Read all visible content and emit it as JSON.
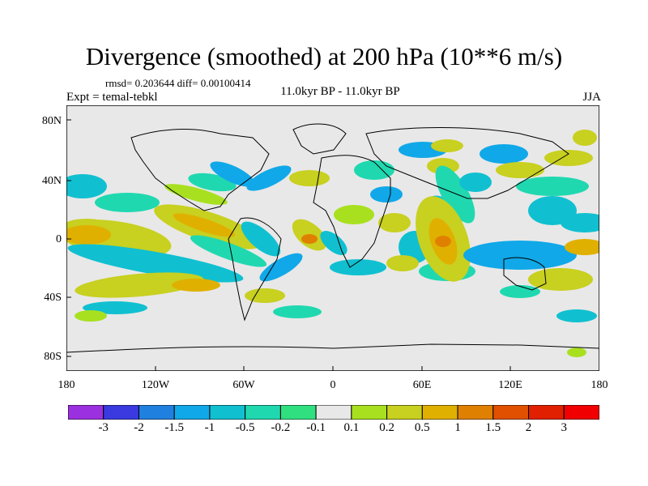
{
  "title": "Divergence (smoothed) at 200 hPa (10**6 m/s)",
  "stats": "rmsd= 0.203644  diff= 0.00100414",
  "experiment": "Expt = temal-tebkl",
  "period": "11.0kyr BP - 11.0kyr BP",
  "season": "JJA",
  "lat_labels": [
    "80N",
    "40N",
    "0",
    "40S",
    "80S"
  ],
  "lon_labels": [
    "180",
    "120W",
    "60W",
    "0",
    "60E",
    "120E",
    "180"
  ],
  "colorbar": {
    "labels": [
      "-3",
      "-2",
      "-1.5",
      "-1",
      "-0.5",
      "-0.2",
      "-0.1",
      "0.1",
      "0.2",
      "0.5",
      "1",
      "1.5",
      "2",
      "3"
    ],
    "colors": [
      "#9b30e0",
      "#3a3ae0",
      "#2080e0",
      "#10a8e8",
      "#10c0d0",
      "#20d8b0",
      "#30e080",
      "#e8e8e8",
      "#a8e020",
      "#c8d020",
      "#e0b000",
      "#e08000",
      "#e05000",
      "#e02000",
      "#f00000"
    ]
  },
  "colors": {
    "background": "#e8e8e8",
    "neg_weak": "#30e080",
    "neg_mid": "#10c0d0",
    "neg_strong": "#10a8e8",
    "pos_weak": "#a8e020",
    "pos_mid": "#c8d020",
    "pos_strong": "#e0b000",
    "pos_peak": "#e08000"
  }
}
